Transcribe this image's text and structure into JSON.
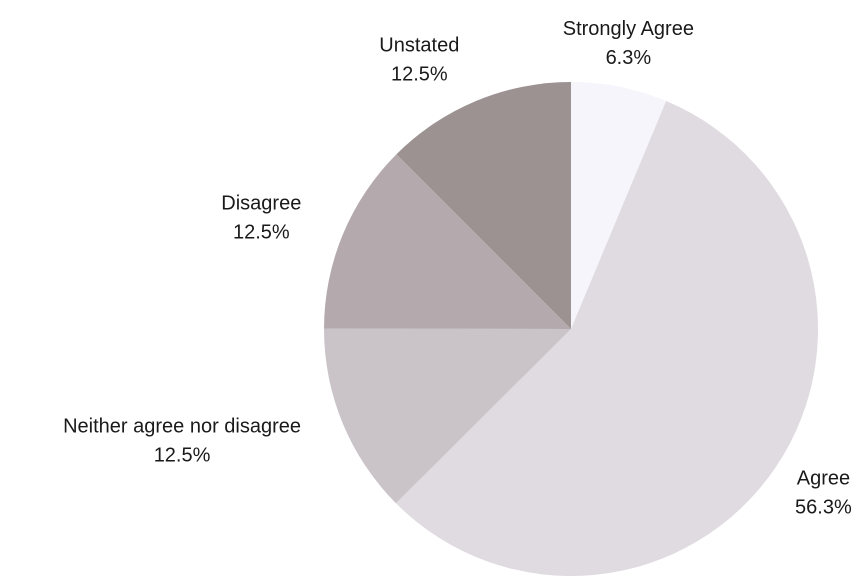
{
  "chart_data": {
    "type": "pie",
    "title": "",
    "start_angle_deg": 0,
    "direction": "clockwise",
    "slices": [
      {
        "label": "Strongly Agree",
        "value": 6.3,
        "value_label": "6.3%",
        "color": "#f5f5fb"
      },
      {
        "label": "Agree",
        "value": 56.3,
        "value_label": "56.3%",
        "color": "#dfdbe0"
      },
      {
        "label": "Neither agree nor disagree",
        "value": 12.5,
        "value_label": "12.5%",
        "color": "#cac4c8"
      },
      {
        "label": "Disagree",
        "value": 12.5,
        "value_label": "12.5%",
        "color": "#b4aaad"
      },
      {
        "label": "Unstated",
        "value": 12.5,
        "value_label": "12.5%",
        "color": "#9d9292"
      }
    ]
  }
}
